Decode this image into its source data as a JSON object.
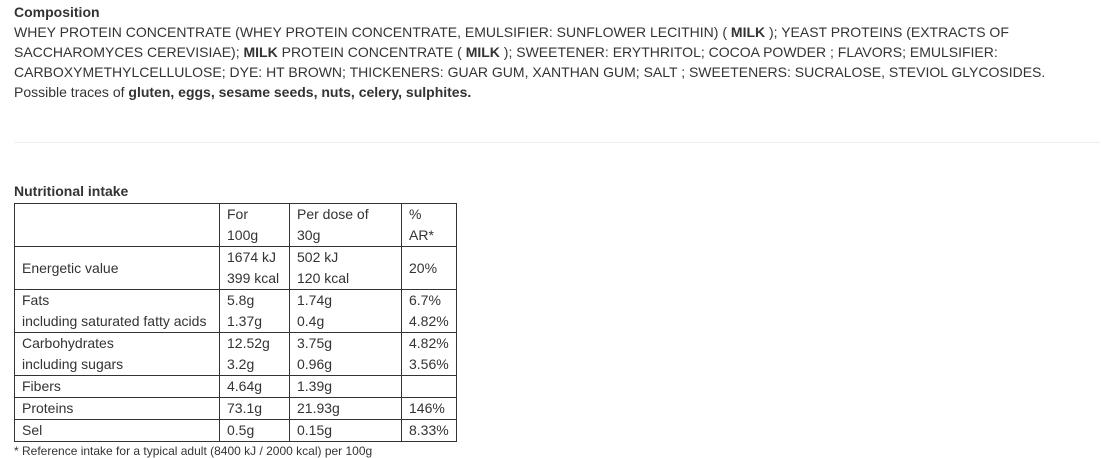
{
  "composition": {
    "title": "Composition",
    "parts": [
      {
        "text": "WHEY PROTEIN CONCENTRATE (WHEY PROTEIN CONCENTRATE, EMULSIFIER: SUNFLOWER LECITHIN) ( ",
        "bold": false
      },
      {
        "text": "MILK",
        "bold": true
      },
      {
        "text": " ); YEAST PROTEINS (EXTRACTS OF SACCHAROMYCES CEREVISIAE); ",
        "bold": false
      },
      {
        "text": "MILK",
        "bold": true
      },
      {
        "text": " PROTEIN CONCENTRATE ( ",
        "bold": false
      },
      {
        "text": "MILK",
        "bold": true
      },
      {
        "text": " ); SWEETENER: ERYTHRITOL; COCOA POWDER ; FLAVORS; EMULSIFIER: CARBOXYMETHYLCELLULOSE; DYE: HT BROWN; THICKENERS: GUAR GUM, XANTHAN GUM; SALT ; SWEETENERS: SUCRALOSE, STEVIOL GLYCOSIDES.",
        "bold": false
      }
    ],
    "traces": [
      {
        "text": "Possible traces of ",
        "bold": false
      },
      {
        "text": "gluten, eggs, sesame seeds, nuts, celery, sulphites.",
        "bold": true
      }
    ]
  },
  "nutrition": {
    "title": "Nutritional intake",
    "header": [
      "For 100g",
      "Per dose of 30g",
      "% AR*"
    ],
    "groups": [
      {
        "cells": [
          [
            "Energetic value"
          ],
          [
            "1674 kJ",
            "399 kcal"
          ],
          [
            "502 kJ",
            "120 kcal"
          ],
          [
            "20%"
          ]
        ]
      },
      {
        "cells": [
          [
            "Fats",
            "including saturated fatty acids"
          ],
          [
            "5.8g",
            "1.37g"
          ],
          [
            "1.74g",
            "0.4g"
          ],
          [
            "6.7%",
            "4.82%"
          ]
        ]
      },
      {
        "cells": [
          [
            "Carbohydrates",
            "including sugars"
          ],
          [
            "12.52g",
            "3.2g"
          ],
          [
            "3.75g",
            "0.96g"
          ],
          [
            "4.82%",
            "3.56%"
          ]
        ]
      },
      {
        "cells": [
          [
            "Fibers"
          ],
          [
            "4.64g"
          ],
          [
            "1.39g"
          ],
          []
        ]
      },
      {
        "cells": [
          [
            "Proteins"
          ],
          [
            "73.1g"
          ],
          [
            "21.93g"
          ],
          [
            "146%"
          ]
        ]
      },
      {
        "cells": [
          [
            "Sel"
          ],
          [
            "0.5g"
          ],
          [
            "0.15g"
          ],
          [
            "8.33%"
          ]
        ]
      }
    ],
    "footnote": "* Reference intake for a typical adult (8400 kJ / 2000 kcal) per 100g"
  }
}
